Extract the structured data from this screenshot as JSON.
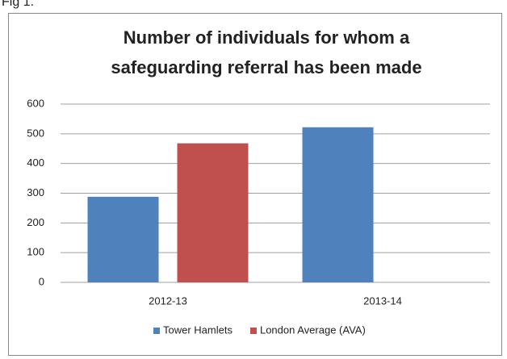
{
  "caption": "Fig 1.",
  "chart_data": {
    "type": "bar",
    "title": [
      "Number of individuals for whom a",
      "safeguarding referral has been made"
    ],
    "categories": [
      "2012-13",
      "2013-14"
    ],
    "series": [
      {
        "name": "Tower Hamlets",
        "color": "#4f81bd",
        "values": [
          288,
          522
        ]
      },
      {
        "name": "London Average (AVA)",
        "color": "#c0504d",
        "values": [
          468,
          null
        ]
      }
    ],
    "ylim": [
      0,
      600
    ],
    "yticks": [
      0,
      100,
      200,
      300,
      400,
      500,
      600
    ],
    "grid": true,
    "legend": "bottom"
  }
}
